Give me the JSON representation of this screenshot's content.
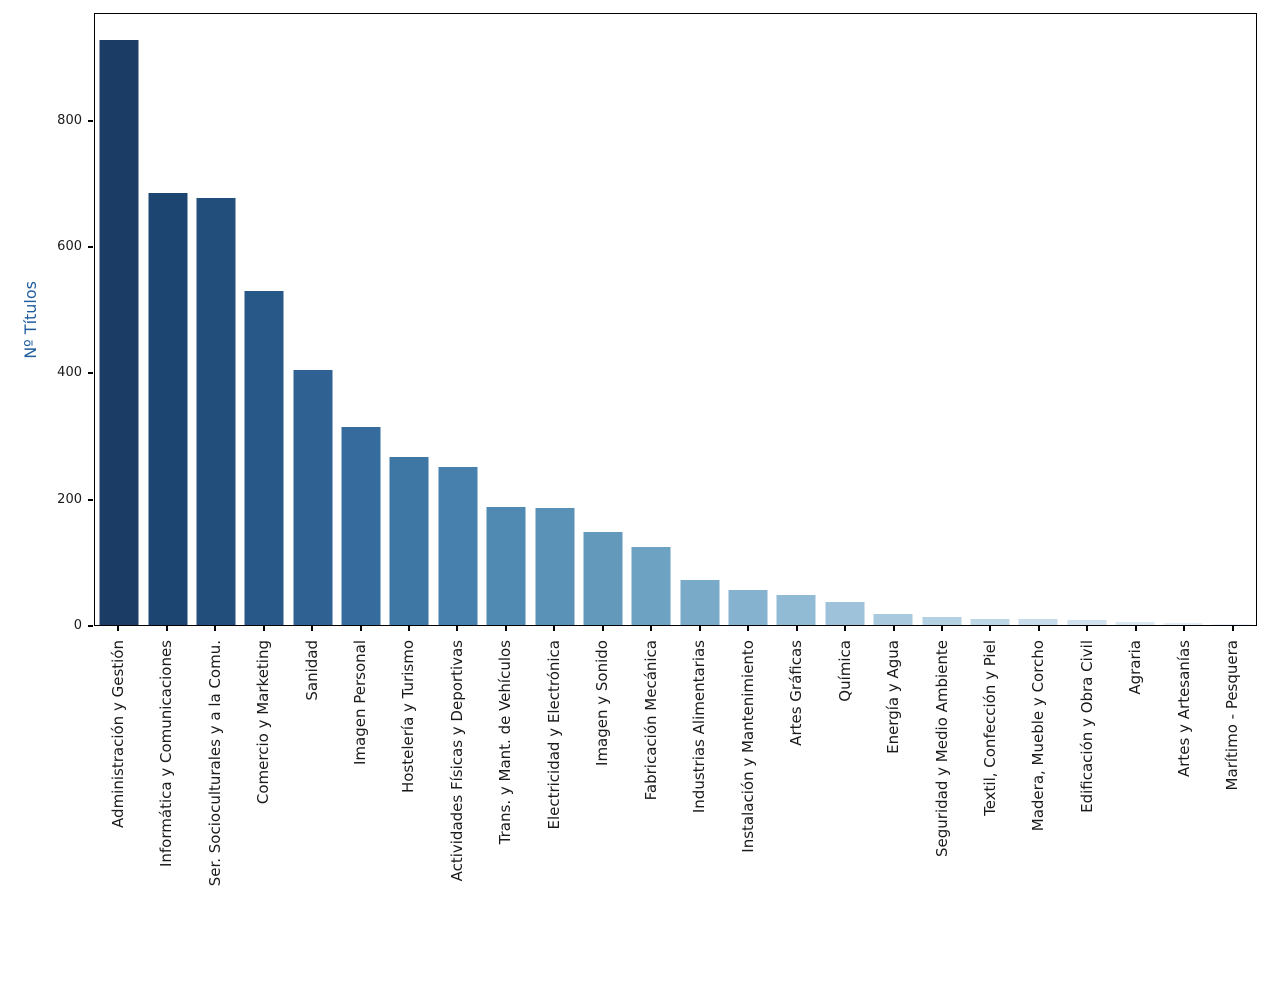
{
  "figure": {
    "background": "#ffffff",
    "axis_color": "#000000",
    "tick_label_color": "#1a1a1a",
    "ylabel_color": "#1f5c9e"
  },
  "chart_data": {
    "type": "bar",
    "title": "",
    "xlabel": "",
    "ylabel": "Nº Títulos",
    "grid": false,
    "legend": null,
    "ylim": [
      0,
      971
    ],
    "yticks": [
      0,
      200,
      400,
      600,
      800
    ],
    "categories": [
      "Administración y Gestión",
      "Informática y Comunicaciones",
      "Ser. Socioculturales y a la Comu.",
      "Comercio y Marketing",
      "Sanidad",
      "Imagen Personal",
      "Hostelería y Turismo",
      "Actividades Físicas y Deportivas",
      "Trans. y Mant. de Vehículos",
      "Electricidad y Electrónica",
      "Imagen y Sonido",
      "Fabricación Mecánica",
      "Industrias Alimentarias",
      "Instalación y Mantenimiento",
      "Artes Gráficas",
      "Química",
      "Energía y Agua",
      "Seguridad y Medio Ambiente",
      "Textil, Confección y Piel",
      "Madera, Mueble y Corcho",
      "Edificación y Obra Civil",
      "Agraria",
      "Artes y Artesanías",
      "Marítimo - Pesquera"
    ],
    "values": [
      930,
      687,
      678,
      531,
      405,
      314,
      267,
      251,
      188,
      186,
      148,
      124,
      71,
      56,
      48,
      36,
      18,
      12,
      10,
      9,
      8,
      5,
      3,
      1
    ],
    "bar_colors": [
      "#1b3c64",
      "#1d4571",
      "#224e7c",
      "#285888",
      "#2f6293",
      "#366c9d",
      "#3e76a4",
      "#4780ac",
      "#508ab3",
      "#5991b7",
      "#639abc",
      "#6da2c2",
      "#79aac8",
      "#85b2ce",
      "#91bad4",
      "#9dc2d9",
      "#a9cade",
      "#b4d1e3",
      "#bed7e7",
      "#c8ddeb",
      "#d1e2ee",
      "#dae8f2",
      "#e3edf6",
      "#ebf2f9"
    ]
  }
}
